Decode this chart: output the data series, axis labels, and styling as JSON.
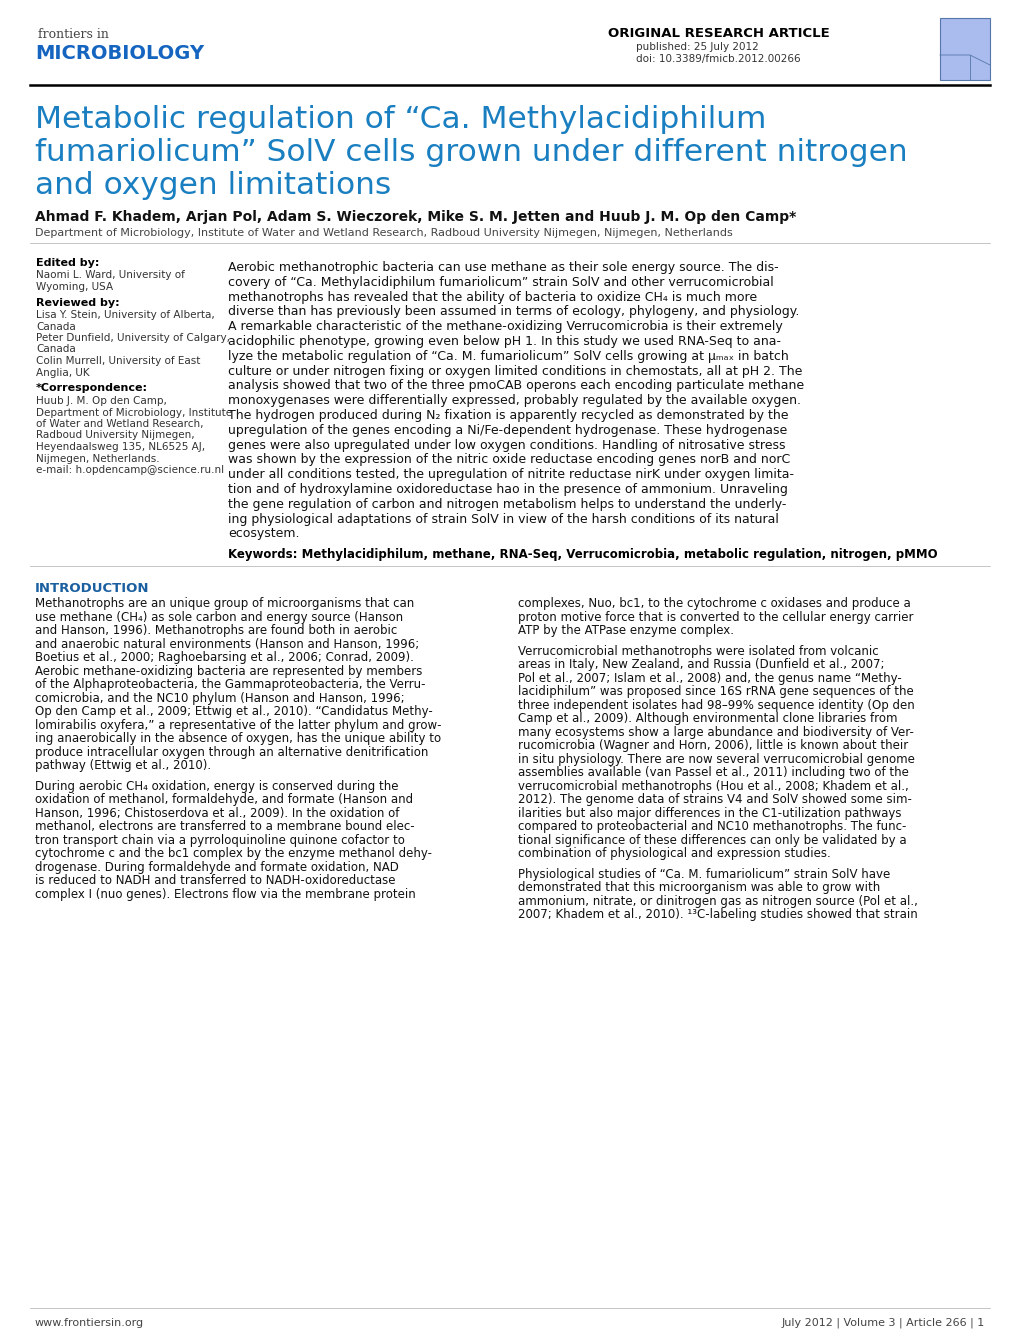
{
  "background_color": "#ffffff",
  "title_line1": "Metabolic regulation of “Ca. Methylacidiphilum",
  "title_line2": "fumariolicum” SolV cells grown under different nitrogen",
  "title_line3": "and oxygen limitations",
  "title_color": "#1a7fc1",
  "frontiers_in": "frontiers in",
  "microbiology": "MICROBIOLOGY",
  "microbiology_color": "#1565c0",
  "frontiers_color": "#444444",
  "orig_research": "ORIGINAL RESEARCH ARTICLE",
  "published": "published: 25 July 2012",
  "doi_text": "doi: 10.3389/fmicb.2012.00266",
  "authors": "Ahmad F. Khadem, Arjan Pol, Adam S. Wieczorek, Mike S. M. Jetten and Huub J. M. Op den Camp*",
  "affiliation": "Department of Microbiology, Institute of Water and Wetland Research, Radboud University Nijmegen, Nijmegen, Netherlands",
  "edited_by_label": "Edited by:",
  "edited_by_lines": [
    "Naomi L. Ward, University of",
    "Wyoming, USA"
  ],
  "reviewed_by_label": "Reviewed by:",
  "reviewed_by_lines": [
    "Lisa Y. Stein, University of Alberta,",
    "Canada",
    "Peter Dunfield, University of Calgary,",
    "Canada",
    "Colin Murrell, University of East",
    "Anglia, UK"
  ],
  "correspondence_label": "*Correspondence:",
  "correspondence_lines": [
    "Huub J. M. Op den Camp,",
    "Department of Microbiology, Institute",
    "of Water and Wetland Research,",
    "Radboud University Nijmegen,",
    "Heyendaalsweg 135, NL6525 AJ,",
    "Nijmegen, Netherlands.",
    "e-mail: h.opdencamp@science.ru.nl"
  ],
  "abstract_wrapped": [
    "Aerobic methanotrophic bacteria can use methane as their sole energy source. The dis-",
    "covery of “Ca. Methylacidiphilum fumariolicum” strain SolV and other verrucomicrobial",
    "methanotrophs has revealed that the ability of bacteria to oxidize CH₄ is much more",
    "diverse than has previously been assumed in terms of ecology, phylogeny, and physiology.",
    "A remarkable characteristic of the methane-oxidizing Verrucomicrobia is their extremely",
    "acidophilic phenotype, growing even below pH 1. In this study we used RNA-Seq to ana-",
    "lyze the metabolic regulation of “Ca. M. fumariolicum” SolV cells growing at μₘₐₓ in batch",
    "culture or under nitrogen fixing or oxygen limited conditions in chemostats, all at pH 2. The",
    "analysis showed that two of the three pmoCAB operons each encoding particulate methane",
    "monoxygenases were differentially expressed, probably regulated by the available oxygen.",
    "The hydrogen produced during N₂ fixation is apparently recycled as demonstrated by the",
    "upregulation of the genes encoding a Ni/Fe-dependent hydrogenase. These hydrogenase",
    "genes were also upregulated under low oxygen conditions. Handling of nitrosative stress",
    "was shown by the expression of the nitric oxide reductase encoding genes norB and norC",
    "under all conditions tested, the upregulation of nitrite reductase nirK under oxygen limita-",
    "tion and of hydroxylamine oxidoreductase hao in the presence of ammonium. Unraveling",
    "the gene regulation of carbon and nitrogen metabolism helps to understand the underly-",
    "ing physiological adaptations of strain SolV in view of the harsh conditions of its natural",
    "ecosystem."
  ],
  "keywords": "Keywords: Methylacidiphilum, methane, RNA-Seq, Verrucomicrobia, metabolic regulation, nitrogen, pMMO",
  "intro_label": "INTRODUCTION",
  "intro_col1_lines": [
    "Methanotrophs are an unique group of microorganisms that can",
    "use methane (CH₄) as sole carbon and energy source (Hanson",
    "and Hanson, 1996). Methanotrophs are found both in aerobic",
    "and anaerobic natural environments (Hanson and Hanson, 1996;",
    "Boetius et al., 2000; Raghoebarsing et al., 2006; Conrad, 2009).",
    "Aerobic methane-oxidizing bacteria are represented by members",
    "of the Alphaproteobacteria, the Gammaproteobacteria, the Verru-",
    "comicrobia, and the NC10 phylum (Hanson and Hanson, 1996;",
    "Op den Camp et al., 2009; Ettwig et al., 2010). “Candidatus Methy-",
    "lomirabilis oxyfera,” a representative of the latter phylum and grow-",
    "ing anaerobically in the absence of oxygen, has the unique ability to",
    "produce intracellular oxygen through an alternative denitrification",
    "pathway (Ettwig et al., 2010).",
    "",
    "During aerobic CH₄ oxidation, energy is conserved during the",
    "oxidation of methanol, formaldehyde, and formate (Hanson and",
    "Hanson, 1996; Chistoserdova et al., 2009). In the oxidation of",
    "methanol, electrons are transferred to a membrane bound elec-",
    "tron transport chain via a pyrroloquinoline quinone cofactor to",
    "cytochrome c and the bc1 complex by the enzyme methanol dehy-",
    "drogenase. During formaldehyde and formate oxidation, NAD",
    "is reduced to NADH and transferred to NADH-oxidoreductase",
    "complex I (nuo genes). Electrons flow via the membrane protein"
  ],
  "intro_col2_lines": [
    "complexes, Nuo, bc1, to the cytochrome c oxidases and produce a",
    "proton motive force that is converted to the cellular energy carrier",
    "ATP by the ATPase enzyme complex.",
    "",
    "Verrucomicrobial methanotrophs were isolated from volcanic",
    "areas in Italy, New Zealand, and Russia (Dunfield et al., 2007;",
    "Pol et al., 2007; Islam et al., 2008) and, the genus name “Methy-",
    "lacidiphilum” was proposed since 16S rRNA gene sequences of the",
    "three independent isolates had 98–99% sequence identity (Op den",
    "Camp et al., 2009). Although environmental clone libraries from",
    "many ecosystems show a large abundance and biodiversity of Ver-",
    "rucomicrobia (Wagner and Horn, 2006), little is known about their",
    "in situ physiology. There are now several verrucomicrobial genome",
    "assemblies available (van Passel et al., 2011) including two of the",
    "verrucomicrobial methanotrophs (Hou et al., 2008; Khadem et al.,",
    "2012). The genome data of strains V4 and SolV showed some sim-",
    "ilarities but also major differences in the C1-utilization pathways",
    "compared to proteobacterial and NC10 methanotrophs. The func-",
    "tional significance of these differences can only be validated by a",
    "combination of physiological and expression studies.",
    "",
    "Physiological studies of “Ca. M. fumariolicum” strain SolV have",
    "demonstrated that this microorganism was able to grow with",
    "ammonium, nitrate, or dinitrogen gas as nitrogen source (Pol et al.,",
    "2007; Khadem et al., 2010). ¹³C-labeling studies showed that strain"
  ],
  "footer_left": "www.frontiersin.org",
  "footer_right": "July 2012 | Volume 3 | Article 266 | 1",
  "section_color": "#1a5fa0",
  "text_color": "#111111",
  "sidebar_text_color": "#333333",
  "link_color": "#888888"
}
